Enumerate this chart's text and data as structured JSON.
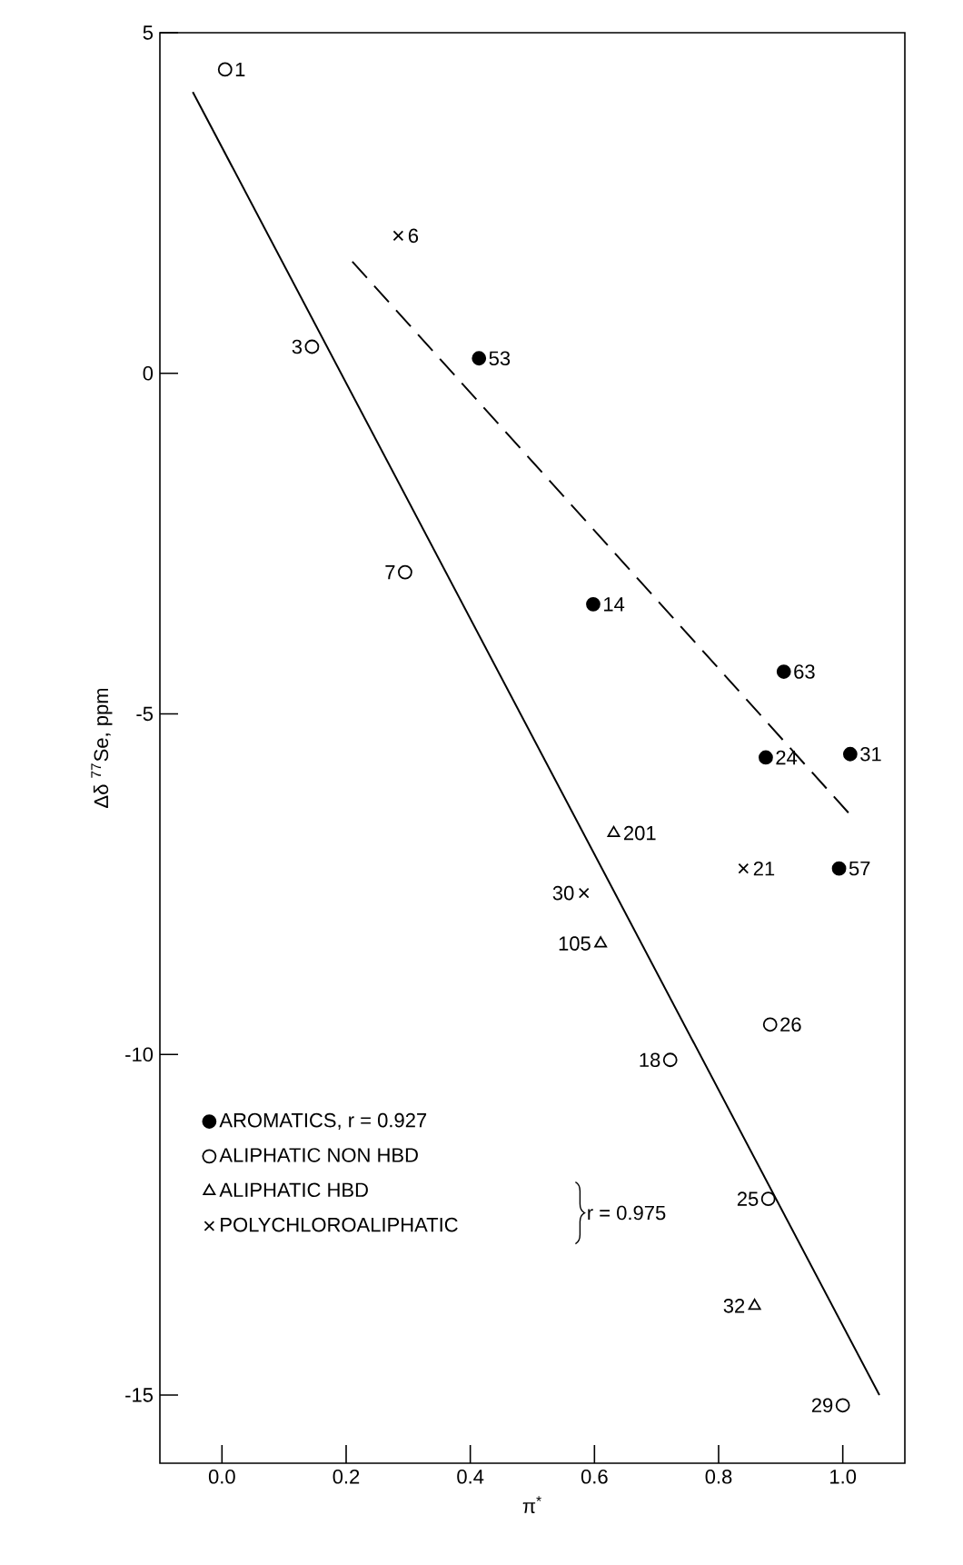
{
  "chart_data": {
    "type": "scatter",
    "xlabel": "π$^{*}$",
    "ylabel": "Δδ  $^{77}$Se, ppm",
    "xlim": [
      -0.1,
      1.1
    ],
    "ylim": [
      -16,
      5
    ],
    "xticks": [
      {
        "value": 0,
        "label": "0.0"
      },
      {
        "value": 0.2,
        "label": "0.2"
      },
      {
        "value": 0.4,
        "label": "0.4"
      },
      {
        "value": 0.6,
        "label": "0.6"
      },
      {
        "value": 0.8,
        "label": "0.8"
      },
      {
        "value": 1,
        "label": "1.0"
      }
    ],
    "yticks": [
      -15,
      -10,
      -5,
      0,
      5
    ],
    "legend": "bottom left",
    "series": [
      {
        "name": "AROMATICS, r = 0.927",
        "color": "#000000",
        "marker": "circle",
        "x": [
          0.414,
          0.598,
          0.905,
          0.876,
          1.012,
          0.994
        ],
        "values": [
          0.22,
          -3.39,
          -4.38,
          -5.64,
          -5.59,
          -7.27
        ]
      },
      {
        "name": "ALIPHATIC NON HBD",
        "color": "#ffffff",
        "marker": "circle",
        "x": [
          0.005,
          0.145,
          0.295,
          0.883,
          0.722,
          0.88,
          1.0
        ],
        "values": [
          4.46,
          0.39,
          -2.92,
          -9.56,
          -10.08,
          -12.12,
          -15.15
        ]
      },
      {
        "name": "ALIPHATIC HBD",
        "color": "#ffffff",
        "marker": "triangle",
        "x": [
          0.631,
          0.61,
          0.858
        ],
        "values": [
          -6.75,
          -8.37,
          -13.69
        ]
      },
      {
        "name": "POLYCHLOROALIPHATIC",
        "color": "#000000",
        "marker": "cross",
        "x": [
          0.284,
          0.84,
          0.583
        ],
        "values": [
          2.02,
          -7.27,
          -7.63
        ]
      },
      {
        "type": "line",
        "color": "#000000",
        "marker": "none",
        "line_style": "solid",
        "x": [
          -0.047,
          1.059
        ],
        "values": [
          4.13,
          -15.0
        ]
      },
      {
        "type": "line",
        "color": "#000000",
        "marker": "none",
        "line_style": "dashed",
        "x": [
          0.21,
          1.01
        ],
        "values": [
          1.64,
          -6.46
        ]
      }
    ],
    "annotations": [
      {
        "text": "1",
        "x": 0.005,
        "y": 4.46
      },
      {
        "text": "3",
        "x": 0.145,
        "y": 0.39
      },
      {
        "text": "6",
        "x": 0.284,
        "y": 2.02
      },
      {
        "text": "53",
        "x": 0.414,
        "y": 0.22
      },
      {
        "text": "7",
        "x": 0.295,
        "y": -2.92
      },
      {
        "text": "14",
        "x": 0.598,
        "y": -3.39
      },
      {
        "text": "63",
        "x": 0.905,
        "y": -4.38
      },
      {
        "text": "24",
        "x": 0.876,
        "y": -5.64
      },
      {
        "text": "31",
        "x": 1.012,
        "y": -5.59
      },
      {
        "text": "201",
        "x": 0.631,
        "y": -6.75
      },
      {
        "text": "21",
        "x": 0.84,
        "y": -7.27
      },
      {
        "text": "57",
        "x": 0.994,
        "y": -7.27
      },
      {
        "text": "30",
        "x": 0.583,
        "y": -7.63
      },
      {
        "text": "105",
        "x": 0.61,
        "y": -8.37
      },
      {
        "text": "26",
        "x": 0.883,
        "y": -9.56
      },
      {
        "text": "18",
        "x": 0.722,
        "y": -10.08
      },
      {
        "text": "25",
        "x": 0.88,
        "y": -12.12
      },
      {
        "text": "32",
        "x": 0.858,
        "y": -13.69
      },
      {
        "text": "29",
        "x": 1.0,
        "y": -15.15
      },
      "r = 0.975"
    ]
  }
}
